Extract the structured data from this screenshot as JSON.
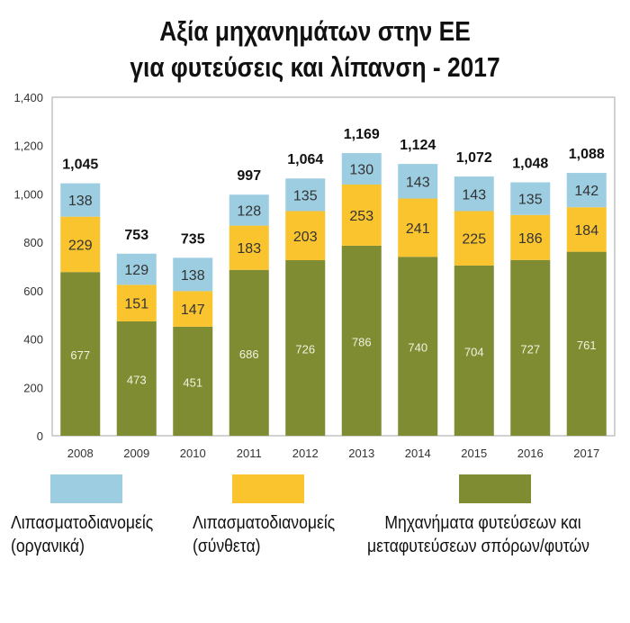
{
  "title_line1": "Αξία μηχανημάτων στην ΕΕ",
  "title_line2": "για φυτεύσεις και λίπανση - 2017",
  "colors": {
    "organic": "#9ccde0",
    "compound": "#fac42f",
    "planting": "#7f8c31"
  },
  "legend": [
    {
      "line1": "Λιπασματοδιανομείς",
      "line2": "(οργανικά)"
    },
    {
      "line1": "Λιπασματοδιανομείς",
      "line2": "(σύνθετα)"
    },
    {
      "line1": "Μηχανήματα φυτεύσεων και",
      "line2": "μεταφυτεύσεων σπόρων/φυτών"
    }
  ],
  "chart_data": {
    "type": "bar",
    "stacked": true,
    "title": "Αξία μηχανημάτων στην ΕΕ για φυτεύσεις και λίπανση - 2017",
    "categories": [
      "2008",
      "2009",
      "2010",
      "2011",
      "2012",
      "2013",
      "2014",
      "2015",
      "2016",
      "2017"
    ],
    "series": [
      {
        "name": "Μηχανήματα φυτεύσεων και μεταφυτεύσεων σπόρων/φυτών",
        "values": [
          677,
          473,
          451,
          686,
          726,
          786,
          740,
          704,
          727,
          761
        ]
      },
      {
        "name": "Λιπασματοδιανομείς (σύνθετα)",
        "values": [
          229,
          151,
          147,
          183,
          203,
          253,
          241,
          225,
          186,
          184
        ]
      },
      {
        "name": "Λιπασματοδιανομείς (οργανικά)",
        "values": [
          138,
          129,
          138,
          128,
          135,
          130,
          143,
          143,
          135,
          142
        ]
      }
    ],
    "totals": [
      "1,045",
      "753",
      "735",
      "997",
      "1,064",
      "1,169",
      "1,124",
      "1,072",
      "1,048",
      "1,088"
    ],
    "yticks": [
      "0",
      "200",
      "400",
      "600",
      "800",
      "1,000",
      "1,200",
      "1,400"
    ],
    "ylim": [
      0,
      1400
    ],
    "xlabel": "",
    "ylabel": "",
    "legend_position": "bottom"
  }
}
